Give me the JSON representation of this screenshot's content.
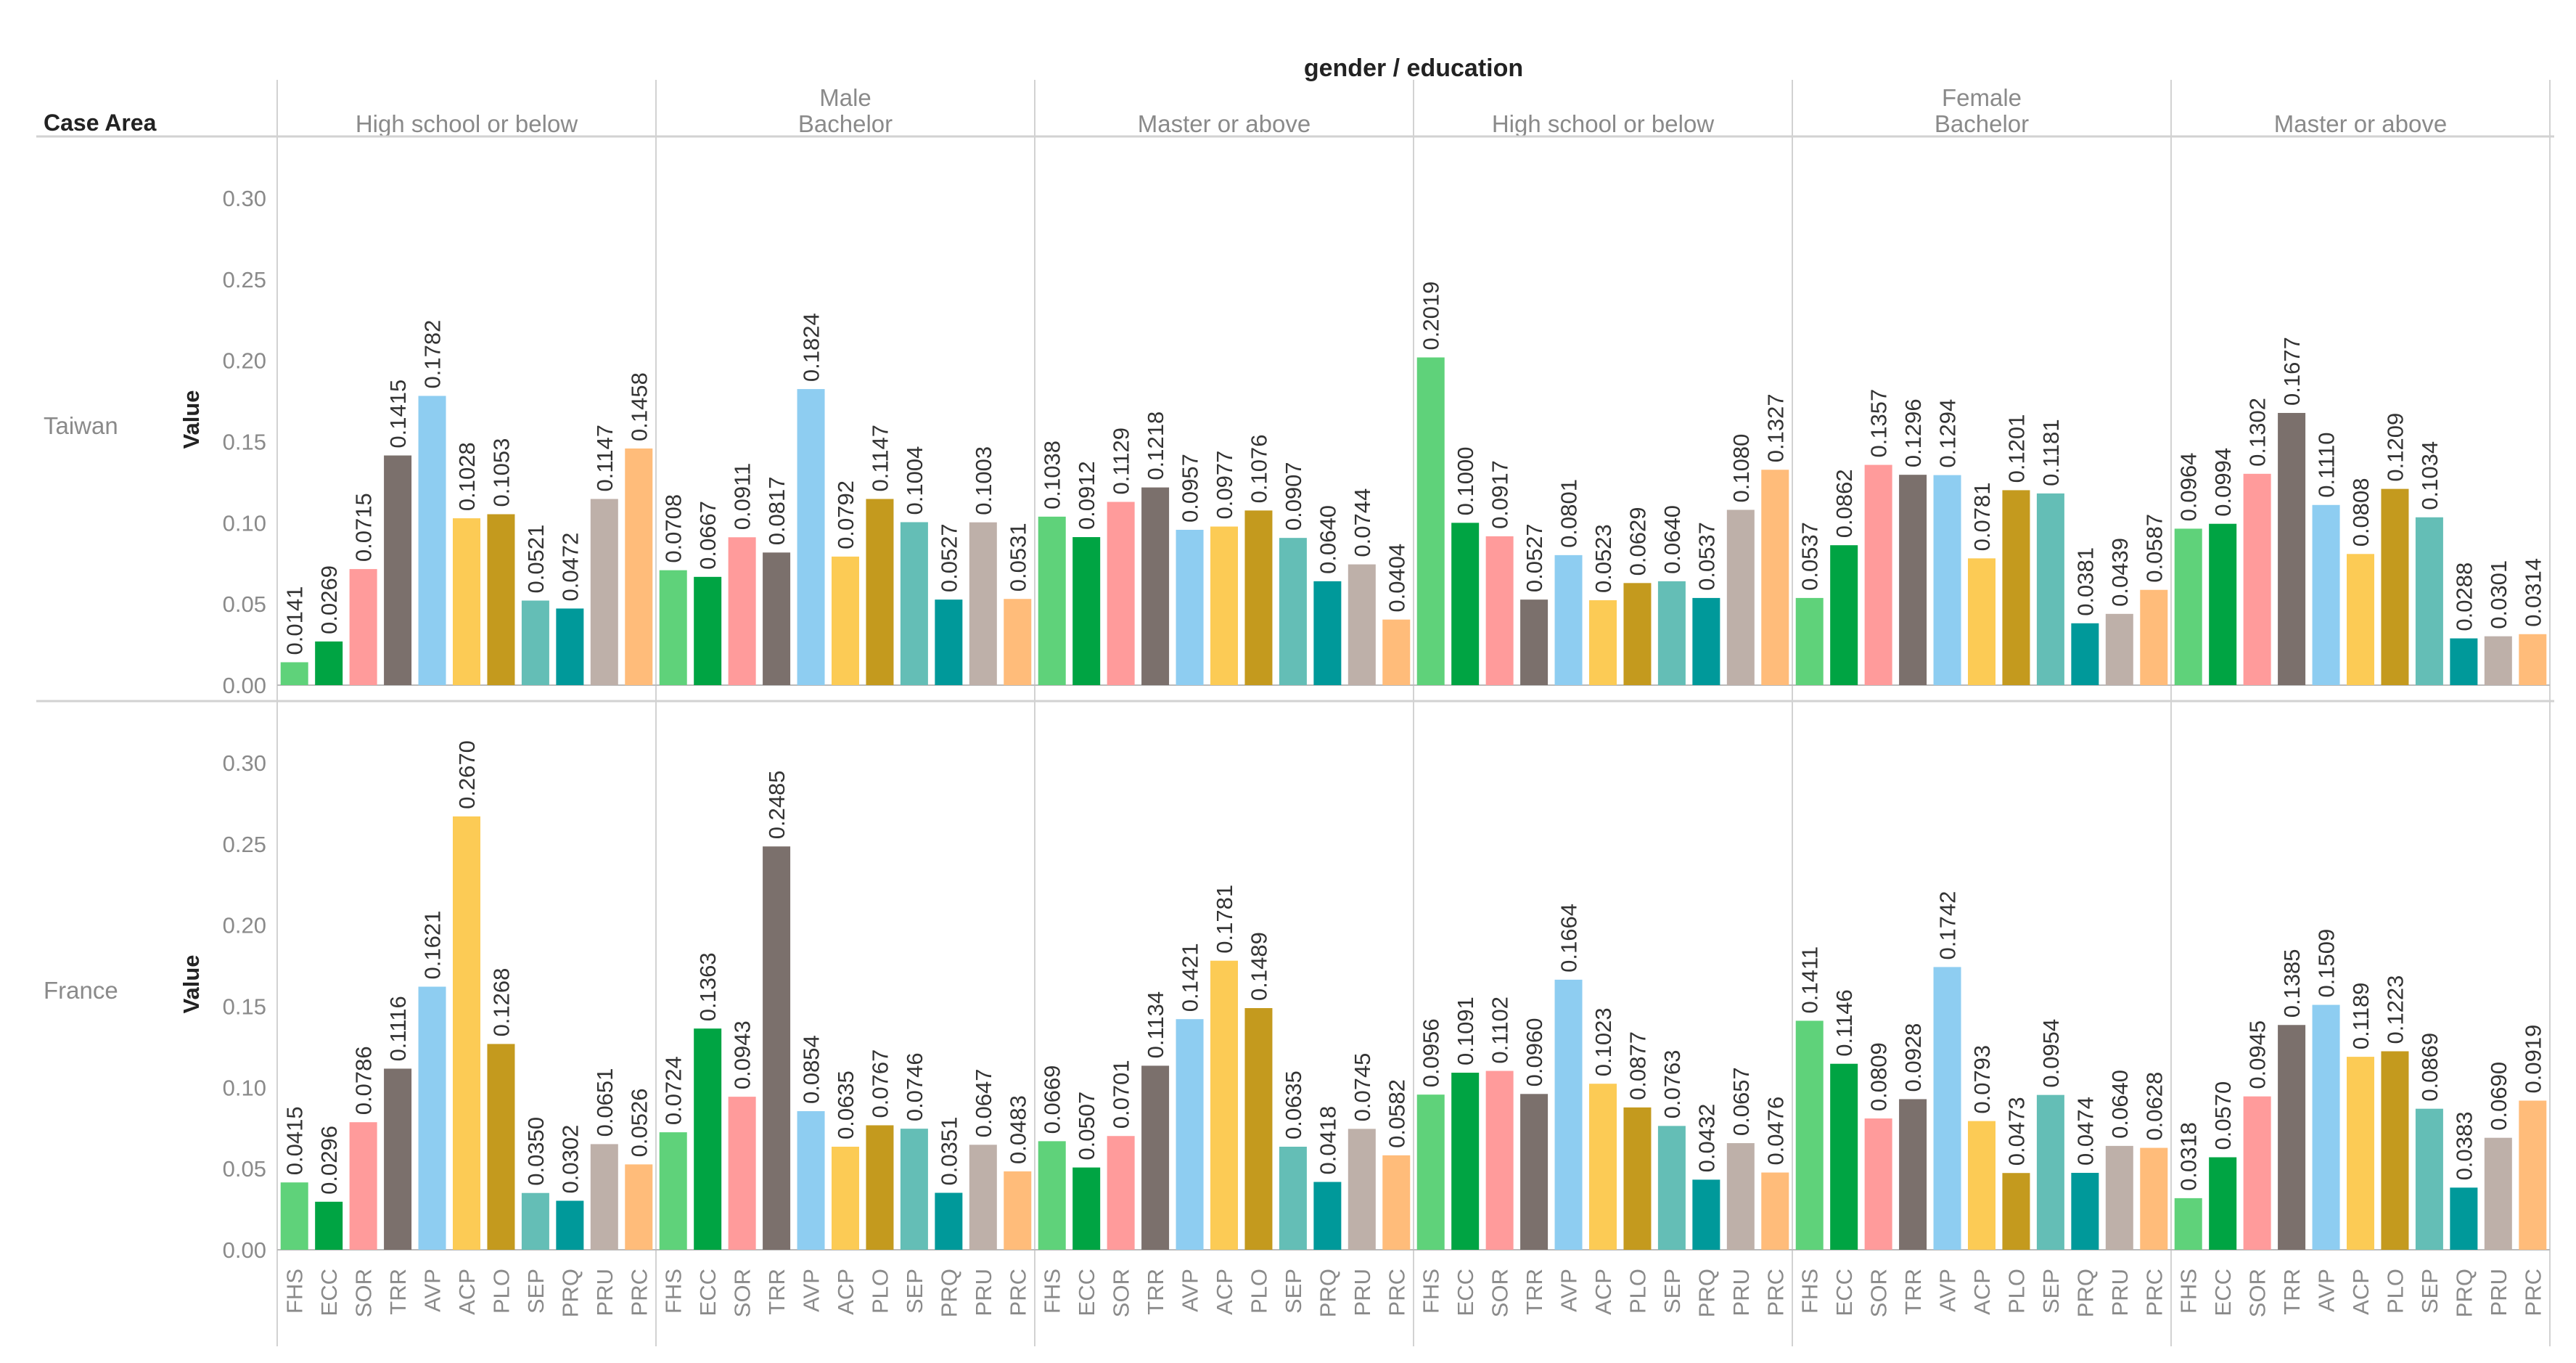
{
  "chart_data": {
    "type": "bar",
    "title": "gender / education",
    "row_header": "Case Area",
    "ylabel": "Value",
    "ylim": [
      0,
      0.33
    ],
    "yticks": [
      "0.00",
      "0.05",
      "0.10",
      "0.15",
      "0.20",
      "0.25",
      "0.30"
    ],
    "grid": false,
    "categories": [
      "FHS",
      "ECC",
      "SOR",
      "TRR",
      "AVP",
      "ACP",
      "PLO",
      "SEP",
      "PRQ",
      "PRU",
      "PRC"
    ],
    "colors": {
      "FHS": "#5fd27a",
      "ECC": "#00a443",
      "SOR": "#ff9b9b",
      "TRR": "#7b706c",
      "AVP": "#8ecdf1",
      "ACP": "#fccb55",
      "PLO": "#c49a1e",
      "SEP": "#64beb6",
      "PRQ": "#00999a",
      "PRU": "#beb0a9",
      "PRC": "#ffbc7a"
    },
    "genders": [
      {
        "name": "Male",
        "educations": [
          "High school or below",
          "Bachelor",
          "Master or above"
        ]
      },
      {
        "name": "Female",
        "educations": [
          "High school or below",
          "Bachelor",
          "Master or above"
        ]
      }
    ],
    "rows": [
      {
        "area": "Taiwan",
        "panels": [
          {
            "gender": "Male",
            "education": "High school or below",
            "values": [
              0.0141,
              0.0269,
              0.0715,
              0.1415,
              0.1782,
              0.1028,
              0.1053,
              0.0521,
              0.0472,
              0.1147,
              0.1458
            ],
            "labels": [
              "0.0141",
              "0.0269",
              "0.0715",
              "0.1415",
              "0.1782",
              "0.1028",
              "0.1053",
              "0.0521",
              "0.0472",
              "0.1147",
              "0.1458"
            ]
          },
          {
            "gender": "Male",
            "education": "Bachelor",
            "values": [
              0.0708,
              0.0667,
              0.0911,
              0.0817,
              0.1824,
              0.0792,
              0.1147,
              0.1004,
              0.0527,
              0.1003,
              0.0531
            ],
            "labels": [
              "0.0708",
              "0.0667",
              "0.0911",
              "0.0817",
              "0.1824",
              "0.0792",
              "0.1147",
              "0.1004",
              "0.0527",
              "0.1003",
              "0.0531"
            ]
          },
          {
            "gender": "Male",
            "education": "Master or above",
            "values": [
              0.1038,
              0.0912,
              0.1129,
              0.1218,
              0.0957,
              0.0977,
              0.1076,
              0.0907,
              0.064,
              0.0744,
              0.0404
            ],
            "labels": [
              "0.1038",
              "0.0912",
              "0.1129",
              "0.1218",
              "0.0957",
              "0.0977",
              "0.1076",
              "0.0907",
              "0.0640",
              "0.0744",
              "0.0404"
            ]
          },
          {
            "gender": "Female",
            "education": "High school or below",
            "values": [
              0.2019,
              0.1,
              0.0917,
              0.0527,
              0.0801,
              0.0523,
              0.0629,
              0.064,
              0.0537,
              0.108,
              0.1327
            ],
            "labels": [
              "0.2019",
              "0.1000",
              "0.0917",
              "0.0527",
              "0.0801",
              "0.0523",
              "0.0629",
              "0.0640",
              "0.0537",
              "0.1080",
              "0.1327"
            ]
          },
          {
            "gender": "Female",
            "education": "Bachelor",
            "values": [
              0.0537,
              0.0862,
              0.1357,
              0.1296,
              0.1294,
              0.0781,
              0.1201,
              0.1181,
              0.0381,
              0.0439,
              0.0587
            ],
            "labels": [
              "0.0537",
              "0.0862",
              "0.1357",
              "0.1296",
              "0.1294",
              "0.0781",
              "0.1201",
              "0.1181",
              "0.0381",
              "0.0439",
              "0.0587"
            ]
          },
          {
            "gender": "Female",
            "education": "Master or above",
            "values": [
              0.0964,
              0.0994,
              0.1302,
              0.1677,
              0.111,
              0.0808,
              0.1209,
              0.1034,
              0.0288,
              0.0301,
              0.0314
            ],
            "labels": [
              "0.0964",
              "0.0994",
              "0.1302",
              "0.1677",
              "0.1110",
              "0.0808",
              "0.1209",
              "0.1034",
              "0.0288",
              "0.0301",
              "0.0314"
            ]
          }
        ]
      },
      {
        "area": "France",
        "panels": [
          {
            "gender": "Male",
            "education": "High school or below",
            "values": [
              0.0415,
              0.0296,
              0.0786,
              0.1116,
              0.1621,
              0.267,
              0.1268,
              0.035,
              0.0302,
              0.0651,
              0.0526
            ],
            "labels": [
              "0.0415",
              "0.0296",
              "0.0786",
              "0.1116",
              "0.1621",
              "0.2670",
              "0.1268",
              "0.0350",
              "0.0302",
              "0.0651",
              "0.0526"
            ]
          },
          {
            "gender": "Male",
            "education": "Bachelor",
            "values": [
              0.0724,
              0.1363,
              0.0943,
              0.2485,
              0.0854,
              0.0635,
              0.0767,
              0.0746,
              0.0351,
              0.0647,
              0.0483
            ],
            "labels": [
              "0.0724",
              "0.1363",
              "0.0943",
              "0.2485",
              "0.0854",
              "0.0635",
              "0.0767",
              "0.0746",
              "0.0351",
              "0.0647",
              "0.0483"
            ]
          },
          {
            "gender": "Male",
            "education": "Master or above",
            "values": [
              0.0669,
              0.0507,
              0.0701,
              0.1134,
              0.1421,
              0.1781,
              0.1489,
              0.0635,
              0.0418,
              0.0745,
              0.0582
            ],
            "labels": [
              "0.0669",
              "0.0507",
              "0.0701",
              "0.1134",
              "0.1421",
              "0.1781",
              "0.1489",
              "0.0635",
              "0.0418",
              "0.0745",
              "0.0582"
            ]
          },
          {
            "gender": "Female",
            "education": "High school or below",
            "values": [
              0.0956,
              0.1091,
              0.1102,
              0.096,
              0.1664,
              0.1023,
              0.0877,
              0.0763,
              0.0432,
              0.0657,
              0.0476
            ],
            "labels": [
              "0.0956",
              "0.1091",
              "0.1102",
              "0.0960",
              "0.1664",
              "0.1023",
              "0.0877",
              "0.0763",
              "0.0432",
              "0.0657",
              "0.0476"
            ]
          },
          {
            "gender": "Female",
            "education": "Bachelor",
            "values": [
              0.1411,
              0.1146,
              0.0809,
              0.0928,
              0.1742,
              0.0793,
              0.0473,
              0.0954,
              0.0474,
              0.064,
              0.0628
            ],
            "labels": [
              "0.1411",
              "0.1146",
              "0.0809",
              "0.0928",
              "0.1742",
              "0.0793",
              "0.0473",
              "0.0954",
              "0.0474",
              "0.0640",
              "0.0628"
            ]
          },
          {
            "gender": "Female",
            "education": "Master or above",
            "values": [
              0.0318,
              0.057,
              0.0945,
              0.1385,
              0.1509,
              0.1189,
              0.1223,
              0.0869,
              0.0383,
              0.069,
              0.0919
            ],
            "labels": [
              "0.0318",
              "0.0570",
              "0.0945",
              "0.1385",
              "0.1509",
              "0.1189",
              "0.1223",
              "0.0869",
              "0.0383",
              "0.0690",
              "0.0919"
            ]
          }
        ]
      }
    ]
  }
}
